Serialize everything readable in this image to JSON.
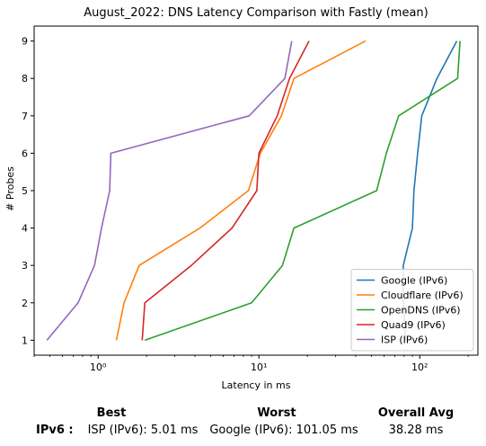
{
  "chart_data": {
    "type": "line",
    "title": "August_2022: DNS Latency Comparison with Fastly (mean)",
    "xlabel": "Latency in ms",
    "ylabel": "# Probes",
    "xscale": "log",
    "xlim": [
      0.4,
      230
    ],
    "ylim": [
      0.6,
      9.4
    ],
    "x_ticks": [
      1,
      10,
      100
    ],
    "x_tick_labels": [
      "10⁰",
      "10¹",
      "10²"
    ],
    "y_ticks": [
      1,
      2,
      3,
      4,
      5,
      6,
      7,
      8,
      9
    ],
    "y_tick_labels": [
      "1",
      "2",
      "3",
      "4",
      "5",
      "6",
      "7",
      "8",
      "9"
    ],
    "grid": false,
    "legend_position": "lower-right",
    "series": [
      {
        "name": "Google (IPv6)",
        "color": "#1f77b4",
        "points": [
          [
            82,
            1
          ],
          [
            79,
            2
          ],
          [
            79,
            3
          ],
          [
            90,
            4
          ],
          [
            92,
            5
          ],
          [
            97,
            6
          ],
          [
            103,
            7
          ],
          [
            128,
            8
          ],
          [
            170,
            9
          ]
        ]
      },
      {
        "name": "Cloudflare (IPv6)",
        "color": "#ff7f0e",
        "points": [
          [
            1.3,
            1
          ],
          [
            1.45,
            2
          ],
          [
            1.8,
            3
          ],
          [
            4.3,
            4
          ],
          [
            8.6,
            5
          ],
          [
            10.2,
            6
          ],
          [
            13.8,
            7
          ],
          [
            16.5,
            8
          ],
          [
            46,
            9
          ]
        ]
      },
      {
        "name": "OpenDNS (IPv6)",
        "color": "#2ca02c",
        "points": [
          [
            1.95,
            1
          ],
          [
            9,
            2
          ],
          [
            14,
            3
          ],
          [
            16.5,
            4
          ],
          [
            54,
            5
          ],
          [
            62,
            6
          ],
          [
            74,
            7
          ],
          [
            172,
            8
          ],
          [
            178,
            9
          ]
        ]
      },
      {
        "name": "Quad9 (IPv6)",
        "color": "#d62728",
        "points": [
          [
            1.88,
            1
          ],
          [
            1.95,
            2
          ],
          [
            3.8,
            3
          ],
          [
            6.8,
            4
          ],
          [
            9.7,
            5
          ],
          [
            10,
            6
          ],
          [
            13,
            7
          ],
          [
            15.5,
            8
          ],
          [
            20.5,
            9
          ]
        ]
      },
      {
        "name": "ISP (IPv6)",
        "color": "#9467bd",
        "points": [
          [
            0.48,
            1
          ],
          [
            0.75,
            2
          ],
          [
            0.95,
            3
          ],
          [
            1.05,
            4
          ],
          [
            1.18,
            5
          ],
          [
            1.2,
            6
          ],
          [
            8.7,
            7
          ],
          [
            14.5,
            8
          ],
          [
            16,
            9
          ]
        ]
      }
    ]
  },
  "summary": {
    "row_label": "IPv6 :",
    "best_header": "Best",
    "worst_header": "Worst",
    "avg_header": "Overall Avg",
    "best_value": "ISP (IPv6): 5.01 ms",
    "worst_value": "Google (IPv6): 101.05 ms",
    "avg_value": "38.28 ms"
  }
}
